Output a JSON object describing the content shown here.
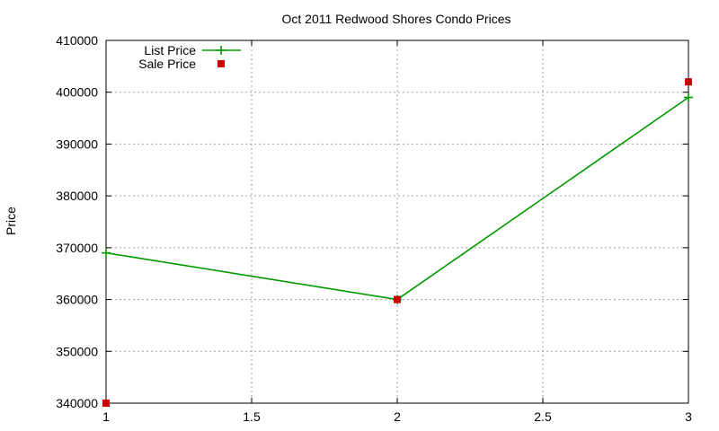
{
  "chart_data": {
    "type": "line",
    "title": "Oct 2011 Redwood Shores Condo Prices",
    "xlabel": "",
    "ylabel": "Price",
    "xlim": [
      1,
      3
    ],
    "ylim": [
      340000,
      410000
    ],
    "x_ticks": [
      1,
      1.5,
      2,
      2.5,
      3
    ],
    "x_tick_labels": [
      "1",
      "1.5",
      "2",
      "2.5",
      "3"
    ],
    "y_ticks": [
      340000,
      350000,
      360000,
      370000,
      380000,
      390000,
      400000,
      410000
    ],
    "y_tick_labels": [
      "340000",
      "350000",
      "360000",
      "370000",
      "380000",
      "390000",
      "400000",
      "410000"
    ],
    "grid": true,
    "legend_position": "top-left",
    "series": [
      {
        "name": "List Price",
        "style": "line with plus markers",
        "color": "#009900",
        "x": [
          1,
          2,
          3
        ],
        "y": [
          369000,
          360000,
          399000
        ]
      },
      {
        "name": "Sale Price",
        "style": "square markers",
        "color": "#cc0000",
        "x": [
          1,
          2,
          3
        ],
        "y": [
          340000,
          360000,
          402000
        ]
      }
    ]
  }
}
